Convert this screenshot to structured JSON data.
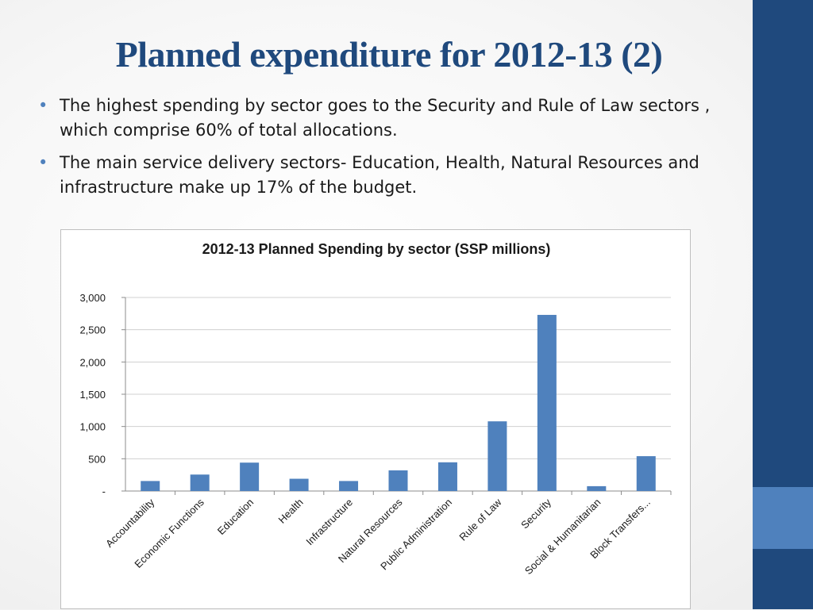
{
  "slide": {
    "title": "Planned expenditure for 2012-13 (2)",
    "bullets": [
      "The highest spending by sector goes to the Security and Rule of Law sectors , which comprise 60% of total allocations.",
      "The main service delivery sectors- Education, Health, Natural Resources and infrastructure make up 17% of the budget."
    ]
  },
  "colors": {
    "title": "#1f497d",
    "bar": "#4f81bd",
    "sidebar": "#1f497d",
    "sidebar_accent": "#4f81bd"
  },
  "chart_data": {
    "type": "bar",
    "title": "2012-13 Planned Spending by sector (SSP millions)",
    "xlabel": "",
    "ylabel": "",
    "categories": [
      "Accountability",
      "Economic Functions",
      "Education",
      "Health",
      "Infrastructure",
      "Natural Resources",
      "Public Administration",
      "Rule of Law",
      "Security",
      "Social & Humanitarian",
      "Block Transfers..."
    ],
    "values": [
      155,
      255,
      440,
      190,
      155,
      320,
      445,
      1080,
      2730,
      75,
      540
    ],
    "ylim": [
      0,
      3000
    ],
    "yticks": [
      0,
      500,
      1000,
      1500,
      2000,
      2500,
      3000
    ],
    "ytick_labels": [
      "-",
      "500",
      "1,000",
      "1,500",
      "2,000",
      "2,500",
      "3,000"
    ],
    "grid": true,
    "legend": "none"
  }
}
